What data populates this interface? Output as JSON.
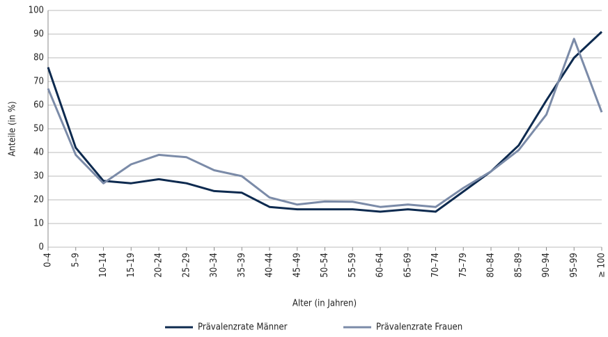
{
  "chart_data": {
    "type": "line",
    "x_label": "Alter (in Jahren)",
    "y_label": "Anteile (in %)",
    "categories": [
      "0–4",
      "5–9",
      "10–14",
      "15–19",
      "20–24",
      "25–29",
      "30–34",
      "35–39",
      "40–44",
      "45–49",
      "50–54",
      "55–59",
      "60–64",
      "65–69",
      "70–74",
      "75–79",
      "80–84",
      "85–89",
      "90–94",
      "95–99",
      "≥ 100"
    ],
    "series": [
      {
        "name": "Prävalenzrate Männer",
        "color": "#0d2a4f",
        "values": [
          76,
          42,
          28,
          27,
          28.7,
          27,
          23.7,
          23,
          17,
          16,
          16,
          16,
          15,
          16,
          15,
          23.5,
          32,
          43,
          62,
          80,
          91
        ]
      },
      {
        "name": "Prävalenzrate Frauen",
        "color": "#7b8ba8",
        "values": [
          67,
          39,
          27,
          35,
          39,
          38,
          32.5,
          30,
          21,
          18,
          19.3,
          19.2,
          17,
          18,
          17,
          25,
          32,
          41,
          56,
          88,
          57
        ]
      }
    ],
    "ylim": [
      0,
      100
    ],
    "yticks": [
      0,
      10,
      20,
      30,
      40,
      50,
      60,
      70,
      80,
      90,
      100
    ],
    "grid": true
  }
}
